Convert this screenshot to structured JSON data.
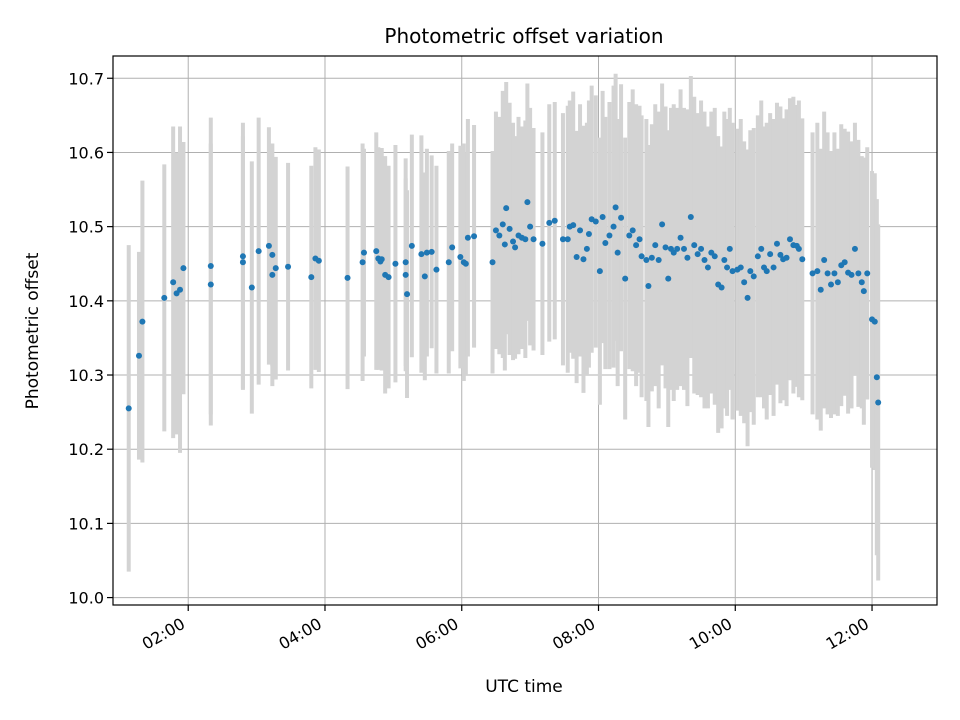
{
  "chart_data": {
    "type": "scatter",
    "title": "Photometric offset variation",
    "xlabel": "UTC time",
    "ylabel": "Photometric offset",
    "x_unit": "hours UTC",
    "xlim": [
      0.9,
      12.95
    ],
    "ylim": [
      9.99,
      10.73
    ],
    "x_ticks": [
      2,
      4,
      6,
      8,
      10,
      12
    ],
    "x_tick_labels": [
      "02:00",
      "04:00",
      "06:00",
      "08:00",
      "10:00",
      "12:00"
    ],
    "y_ticks": [
      10.0,
      10.1,
      10.2,
      10.3,
      10.4,
      10.5,
      10.6,
      10.7
    ],
    "y_tick_labels": [
      "10.0",
      "10.1",
      "10.2",
      "10.3",
      "10.4",
      "10.5",
      "10.6",
      "10.7"
    ],
    "grid": true,
    "marker_color": "#1f77b4",
    "errorbar_color": "#d3d3d3",
    "series": [
      {
        "name": "Photometric offset",
        "points": [
          [
            1.13,
            10.255,
            0.22
          ],
          [
            1.28,
            10.326,
            0.14
          ],
          [
            1.33,
            10.372,
            0.19
          ],
          [
            1.65,
            10.404,
            0.18
          ],
          [
            1.78,
            10.425,
            0.21
          ],
          [
            1.83,
            10.41,
            0.19
          ],
          [
            1.88,
            10.415,
            0.22
          ],
          [
            1.93,
            10.444,
            0.17
          ],
          [
            2.33,
            10.422,
            0.19
          ],
          [
            2.33,
            10.447,
            0.2
          ],
          [
            2.8,
            10.452,
            0.17
          ],
          [
            2.8,
            10.46,
            0.18
          ],
          [
            2.93,
            10.418,
            0.17
          ],
          [
            3.03,
            10.467,
            0.18
          ],
          [
            3.18,
            10.474,
            0.16
          ],
          [
            3.23,
            10.435,
            0.15
          ],
          [
            3.23,
            10.462,
            0.15
          ],
          [
            3.28,
            10.444,
            0.15
          ],
          [
            3.46,
            10.446,
            0.14
          ],
          [
            3.8,
            10.432,
            0.15
          ],
          [
            3.86,
            10.457,
            0.15
          ],
          [
            3.91,
            10.454,
            0.15
          ],
          [
            4.33,
            10.431,
            0.15
          ],
          [
            4.55,
            10.452,
            0.16
          ],
          [
            4.57,
            10.465,
            0.14
          ],
          [
            4.75,
            10.467,
            0.16
          ],
          [
            4.78,
            10.457,
            0.15
          ],
          [
            4.81,
            10.453,
            0.14
          ],
          [
            4.83,
            10.456,
            0.15
          ],
          [
            4.88,
            10.435,
            0.16
          ],
          [
            4.93,
            10.432,
            0.15
          ],
          [
            5.03,
            10.45,
            0.16
          ],
          [
            5.18,
            10.435,
            0.13
          ],
          [
            5.18,
            10.452,
            0.14
          ],
          [
            5.2,
            10.409,
            0.14
          ],
          [
            5.27,
            10.474,
            0.15
          ],
          [
            5.41,
            10.463,
            0.16
          ],
          [
            5.46,
            10.433,
            0.14
          ],
          [
            5.49,
            10.465,
            0.14
          ],
          [
            5.56,
            10.466,
            0.13
          ],
          [
            5.63,
            10.442,
            0.14
          ],
          [
            5.81,
            10.452,
            0.15
          ],
          [
            5.86,
            10.472,
            0.14
          ],
          [
            5.98,
            10.459,
            0.15
          ],
          [
            6.03,
            10.452,
            0.16
          ],
          [
            6.06,
            10.45,
            0.15
          ],
          [
            6.09,
            10.485,
            0.16
          ],
          [
            6.18,
            10.487,
            0.15
          ],
          [
            6.45,
            10.452,
            0.15
          ],
          [
            6.5,
            10.495,
            0.16
          ],
          [
            6.55,
            10.488,
            0.16
          ],
          [
            6.6,
            10.503,
            0.18
          ],
          [
            6.63,
            10.476,
            0.17
          ],
          [
            6.65,
            10.525,
            0.17
          ],
          [
            6.7,
            10.497,
            0.17
          ],
          [
            6.75,
            10.48,
            0.16
          ],
          [
            6.78,
            10.472,
            0.15
          ],
          [
            6.83,
            10.488,
            0.16
          ],
          [
            6.88,
            10.485,
            0.15
          ],
          [
            6.93,
            10.483,
            0.16
          ],
          [
            6.96,
            10.533,
            0.16
          ],
          [
            7.0,
            10.5,
            0.16
          ],
          [
            7.05,
            10.483,
            0.15
          ],
          [
            7.18,
            10.477,
            0.15
          ],
          [
            7.28,
            10.505,
            0.16
          ],
          [
            7.36,
            10.508,
            0.16
          ],
          [
            7.48,
            10.483,
            0.17
          ],
          [
            7.55,
            10.483,
            0.18
          ],
          [
            7.58,
            10.5,
            0.17
          ],
          [
            7.63,
            10.502,
            0.18
          ],
          [
            7.68,
            10.459,
            0.17
          ],
          [
            7.73,
            10.495,
            0.17
          ],
          [
            7.78,
            10.456,
            0.18
          ],
          [
            7.83,
            10.47,
            0.17
          ],
          [
            7.86,
            10.49,
            0.18
          ],
          [
            7.9,
            10.51,
            0.18
          ],
          [
            7.96,
            10.507,
            0.17
          ],
          [
            8.02,
            10.44,
            0.18
          ],
          [
            8.06,
            10.513,
            0.17
          ],
          [
            8.1,
            10.478,
            0.17
          ],
          [
            8.16,
            10.488,
            0.18
          ],
          [
            8.22,
            10.5,
            0.19
          ],
          [
            8.25,
            10.526,
            0.18
          ],
          [
            8.28,
            10.465,
            0.18
          ],
          [
            8.33,
            10.512,
            0.18
          ],
          [
            8.39,
            10.43,
            0.19
          ],
          [
            8.45,
            10.488,
            0.18
          ],
          [
            8.5,
            10.495,
            0.19
          ],
          [
            8.55,
            10.475,
            0.19
          ],
          [
            8.6,
            10.483,
            0.18
          ],
          [
            8.63,
            10.46,
            0.19
          ],
          [
            8.7,
            10.455,
            0.19
          ],
          [
            8.73,
            10.42,
            0.19
          ],
          [
            8.78,
            10.458,
            0.18
          ],
          [
            8.83,
            10.475,
            0.19
          ],
          [
            8.88,
            10.455,
            0.2
          ],
          [
            8.93,
            10.503,
            0.19
          ],
          [
            8.98,
            10.472,
            0.19
          ],
          [
            9.02,
            10.43,
            0.2
          ],
          [
            9.06,
            10.47,
            0.19
          ],
          [
            9.1,
            10.465,
            0.2
          ],
          [
            9.15,
            10.47,
            0.19
          ],
          [
            9.2,
            10.485,
            0.2
          ],
          [
            9.25,
            10.47,
            0.19
          ],
          [
            9.3,
            10.458,
            0.2
          ],
          [
            9.35,
            10.513,
            0.19
          ],
          [
            9.4,
            10.475,
            0.2
          ],
          [
            9.45,
            10.463,
            0.19
          ],
          [
            9.5,
            10.47,
            0.2
          ],
          [
            9.55,
            10.455,
            0.2
          ],
          [
            9.6,
            10.445,
            0.19
          ],
          [
            9.65,
            10.465,
            0.19
          ],
          [
            9.7,
            10.46,
            0.2
          ],
          [
            9.75,
            10.422,
            0.2
          ],
          [
            9.8,
            10.418,
            0.19
          ],
          [
            9.84,
            10.455,
            0.2
          ],
          [
            9.88,
            10.445,
            0.2
          ],
          [
            9.92,
            10.47,
            0.19
          ],
          [
            9.96,
            10.44,
            0.2
          ],
          [
            10.03,
            10.442,
            0.19
          ],
          [
            10.08,
            10.445,
            0.2
          ],
          [
            10.13,
            10.425,
            0.19
          ],
          [
            10.18,
            10.404,
            0.2
          ],
          [
            10.22,
            10.44,
            0.19
          ],
          [
            10.27,
            10.433,
            0.2
          ],
          [
            10.33,
            10.46,
            0.19
          ],
          [
            10.38,
            10.47,
            0.2
          ],
          [
            10.42,
            10.445,
            0.19
          ],
          [
            10.46,
            10.44,
            0.2
          ],
          [
            10.51,
            10.463,
            0.19
          ],
          [
            10.56,
            10.445,
            0.2
          ],
          [
            10.61,
            10.477,
            0.19
          ],
          [
            10.66,
            10.462,
            0.2
          ],
          [
            10.7,
            10.456,
            0.19
          ],
          [
            10.75,
            10.458,
            0.2
          ],
          [
            10.8,
            10.483,
            0.19
          ],
          [
            10.85,
            10.475,
            0.2
          ],
          [
            10.9,
            10.474,
            0.19
          ],
          [
            10.93,
            10.47,
            0.2
          ],
          [
            10.98,
            10.456,
            0.19
          ],
          [
            11.13,
            10.437,
            0.19
          ],
          [
            11.2,
            10.44,
            0.2
          ],
          [
            11.25,
            10.415,
            0.19
          ],
          [
            11.3,
            10.455,
            0.2
          ],
          [
            11.35,
            10.437,
            0.19
          ],
          [
            11.4,
            10.422,
            0.18
          ],
          [
            11.45,
            10.437,
            0.19
          ],
          [
            11.5,
            10.425,
            0.18
          ],
          [
            11.55,
            10.448,
            0.19
          ],
          [
            11.6,
            10.452,
            0.18
          ],
          [
            11.65,
            10.438,
            0.19
          ],
          [
            11.7,
            10.435,
            0.18
          ],
          [
            11.75,
            10.47,
            0.17
          ],
          [
            11.8,
            10.437,
            0.18
          ],
          [
            11.85,
            10.425,
            0.17
          ],
          [
            11.88,
            10.413,
            0.18
          ],
          [
            11.93,
            10.437,
            0.17
          ],
          [
            12.0,
            10.375,
            0.2
          ],
          [
            12.04,
            10.372,
            0.2
          ],
          [
            12.07,
            10.297,
            0.24
          ],
          [
            12.09,
            10.263,
            0.24
          ]
        ]
      }
    ]
  }
}
